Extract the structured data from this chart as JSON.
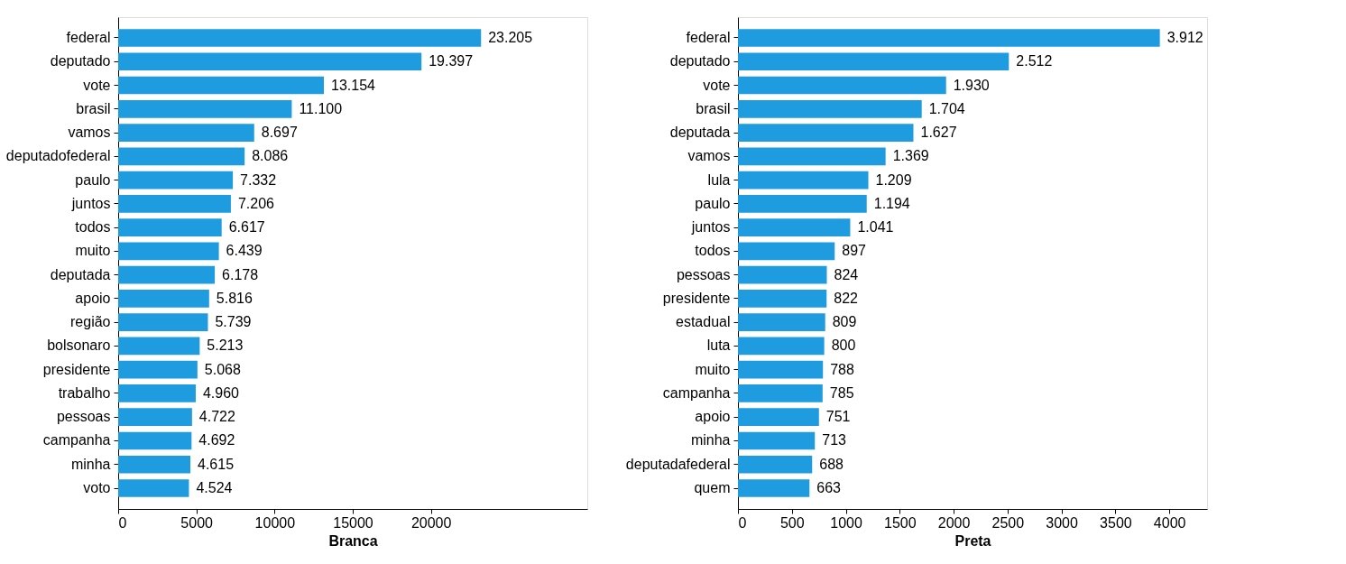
{
  "chart_data": [
    {
      "type": "bar",
      "orientation": "horizontal",
      "xlabel": "Branca",
      "categories": [
        "federal",
        "deputado",
        "vote",
        "brasil",
        "vamos",
        "deputadofederal",
        "paulo",
        "juntos",
        "todos",
        "muito",
        "deputada",
        "apoio",
        "região",
        "bolsonaro",
        "presidente",
        "trabalho",
        "pessoas",
        "campanha",
        "minha",
        "voto"
      ],
      "values": [
        23205,
        19397,
        13154,
        11100,
        8697,
        8086,
        7332,
        7206,
        6617,
        6439,
        6178,
        5816,
        5739,
        5213,
        5068,
        4960,
        4722,
        4692,
        4615,
        4524
      ],
      "value_labels": [
        "23.205",
        "19.397",
        "13.154",
        "11.100",
        "8.697",
        "8.086",
        "7.332",
        "7.206",
        "6.617",
        "6.439",
        "6.178",
        "5.816",
        "5.739",
        "5.213",
        "5.068",
        "4.960",
        "4.722",
        "4.692",
        "4.615",
        "4.524"
      ],
      "color": "#1f9be0",
      "xlim": [
        0,
        30000
      ],
      "xticks": [
        0,
        5000,
        10000,
        15000,
        20000
      ],
      "grid": false
    },
    {
      "type": "bar",
      "orientation": "horizontal",
      "xlabel": "Preta",
      "categories": [
        "federal",
        "deputado",
        "vote",
        "brasil",
        "deputada",
        "vamos",
        "lula",
        "paulo",
        "juntos",
        "todos",
        "pessoas",
        "presidente",
        "estadual",
        "luta",
        "muito",
        "campanha",
        "apoio",
        "minha",
        "deputadafederal",
        "quem"
      ],
      "values": [
        3912,
        2512,
        1930,
        1704,
        1627,
        1369,
        1209,
        1194,
        1041,
        897,
        824,
        822,
        809,
        800,
        788,
        785,
        751,
        713,
        688,
        663
      ],
      "value_labels": [
        "3.912",
        "2.512",
        "1.930",
        "1.704",
        "1.627",
        "1.369",
        "1.209",
        "1.194",
        "1.041",
        "897",
        "824",
        "822",
        "809",
        "800",
        "788",
        "785",
        "751",
        "713",
        "688",
        "663"
      ],
      "color": "#1f9be0",
      "xlim": [
        0,
        4350
      ],
      "xticks": [
        0,
        500,
        1000,
        1500,
        2000,
        2500,
        3000,
        3500,
        4000
      ],
      "grid": false
    }
  ]
}
